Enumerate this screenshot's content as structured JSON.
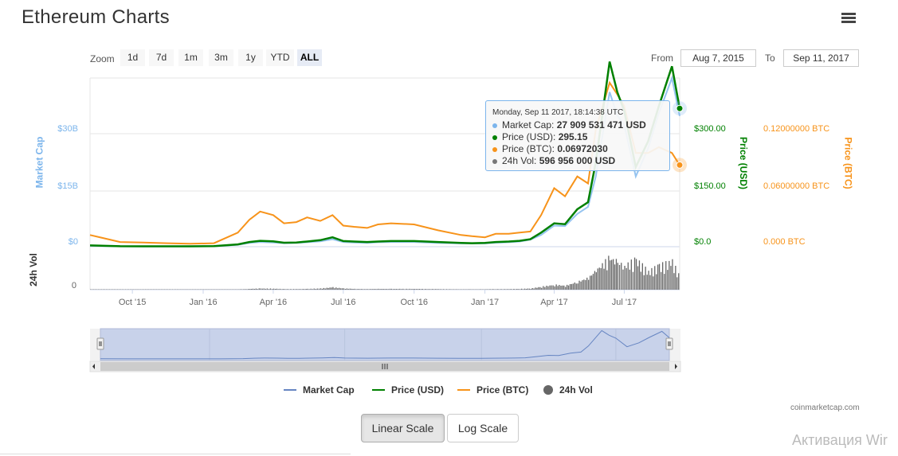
{
  "header": {
    "title": "Ethereum Charts"
  },
  "zoom": {
    "label": "Zoom",
    "buttons": [
      "1d",
      "7d",
      "1m",
      "3m",
      "1y",
      "YTD",
      "ALL"
    ],
    "selected": "ALL"
  },
  "range": {
    "from_label": "From",
    "from_value": "Aug 7, 2015",
    "to_label": "To",
    "to_value": "Sep 11, 2017"
  },
  "axes": {
    "market_cap_title": "Market Cap",
    "market_cap_ticks": [
      "$30B",
      "$15B",
      "$0"
    ],
    "usd_title": "Price (USD)",
    "usd_ticks": [
      "$300.00",
      "$150.00",
      "$0.0"
    ],
    "btc_title": "Price (BTC)",
    "btc_ticks": [
      "0.12000000 BTC",
      "0.06000000 BTC",
      "0.000 BTC"
    ],
    "vol_title": "24h Vol",
    "vol_ticks": [
      "0"
    ],
    "x_ticks": [
      "Oct '15",
      "Jan '16",
      "Apr '16",
      "Jul '16",
      "Oct '16",
      "Jan '17",
      "Apr '17",
      "Jul '17"
    ],
    "navigator_ticks": [
      "Jan '16",
      "Jul '16",
      "Jan '17",
      "Jul '17"
    ]
  },
  "tooltip": {
    "header": "Monday, Sep 11 2017, 18:14:38 UTC",
    "rows": [
      {
        "label": "Market Cap:",
        "value": "27 909 531 471 USD",
        "color": "#7cb5ec"
      },
      {
        "label": "Price (USD):",
        "value": "295.15",
        "color": "#008000"
      },
      {
        "label": "Price (BTC):",
        "value": "0.06972030",
        "color": "#f7931a"
      },
      {
        "label": "24h Vol:",
        "value": "596 956 000 USD",
        "color": "#777777"
      }
    ]
  },
  "legend": [
    "Market Cap",
    "Price (USD)",
    "Price (BTC)",
    "24h Vol"
  ],
  "credits": "coinmarketcap.com",
  "scale_buttons": {
    "linear": "Linear Scale",
    "log": "Log Scale"
  },
  "watermark": "Активация Wir",
  "colors": {
    "market_cap": "#7cb5ec",
    "usd": "#008000",
    "btc": "#f7931a",
    "vol": "#666666",
    "navigator": "#6685c2"
  },
  "chart_data": {
    "type": "line",
    "x": [
      "2015-08-07",
      "2015-09-15",
      "2015-10-15",
      "2015-11-15",
      "2015-12-15",
      "2016-01-15",
      "2016-02-15",
      "2016-03-01",
      "2016-03-15",
      "2016-04-01",
      "2016-04-15",
      "2016-05-01",
      "2016-05-15",
      "2016-06-01",
      "2016-06-17",
      "2016-07-01",
      "2016-07-15",
      "2016-08-01",
      "2016-08-15",
      "2016-09-01",
      "2016-10-01",
      "2016-11-01",
      "2016-12-01",
      "2016-12-15",
      "2017-01-01",
      "2017-01-15",
      "2017-02-01",
      "2017-02-15",
      "2017-03-01",
      "2017-03-15",
      "2017-04-01",
      "2017-04-15",
      "2017-05-01",
      "2017-05-15",
      "2017-05-25",
      "2017-06-12",
      "2017-06-22",
      "2017-07-01",
      "2017-07-16",
      "2017-08-01",
      "2017-08-15",
      "2017-09-01",
      "2017-09-11"
    ],
    "series": [
      {
        "name": "Market Cap",
        "unit": "USD",
        "values": [
          200000000.0,
          80000000.0,
          70000000.0,
          70000000.0,
          70000000.0,
          100000000.0,
          400000000.0,
          800000000.0,
          1000000000.0,
          900000000.0,
          750000000.0,
          800000000.0,
          950000000.0,
          1150000000.0,
          1600000000.0,
          1000000000.0,
          900000000.0,
          800000000.0,
          950000000.0,
          1000000000.0,
          1000000000.0,
          800000000.0,
          700000000.0,
          700000000.0,
          700000000.0,
          850000000.0,
          950000000.0,
          1100000000.0,
          1500000000.0,
          2500000000.0,
          4500000000.0,
          4400000000.0,
          7000000000.0,
          8500000000.0,
          15000000000.0,
          33000000000.0,
          28000000000.0,
          26000000000.0,
          15000000000.0,
          21000000000.0,
          28500000000.0,
          36000000000.0,
          27900000000.0
        ]
      },
      {
        "name": "Price (USD)",
        "unit": "USD",
        "values": [
          2.8,
          1.0,
          0.9,
          0.9,
          0.9,
          1.2,
          5.0,
          10.0,
          12.5,
          11.5,
          8.5,
          9.0,
          11.0,
          14.0,
          20.0,
          12.0,
          11.0,
          10.0,
          11.0,
          12.0,
          12.0,
          10.0,
          8.0,
          7.5,
          8.0,
          10.0,
          11.0,
          12.5,
          16.0,
          30.0,
          50.0,
          48.0,
          80.0,
          95.0,
          180.0,
          395.0,
          330.0,
          290.0,
          170.0,
          225.0,
          300.0,
          385.0,
          295.15
        ]
      },
      {
        "name": "Price (BTC)",
        "unit": "BTC",
        "values": [
          0.01,
          0.004,
          0.0035,
          0.003,
          0.0025,
          0.003,
          0.012,
          0.023,
          0.03,
          0.027,
          0.02,
          0.021,
          0.025,
          0.022,
          0.027,
          0.018,
          0.017,
          0.016,
          0.019,
          0.02,
          0.019,
          0.014,
          0.01,
          0.009,
          0.008,
          0.011,
          0.011,
          0.012,
          0.013,
          0.027,
          0.05,
          0.043,
          0.06,
          0.054,
          0.1,
          0.14,
          0.13,
          0.12,
          0.08,
          0.08,
          0.085,
          0.08,
          0.0697203
        ]
      },
      {
        "name": "24h Vol",
        "unit": "USD",
        "values": [
          1000000.0,
          1000000.0,
          1000000.0,
          1000000.0,
          1000000.0,
          3000000.0,
          20000000.0,
          40000000.0,
          60000000.0,
          50000000.0,
          30000000.0,
          30000000.0,
          40000000.0,
          60000000.0,
          120000000.0,
          60000000.0,
          40000000.0,
          30000000.0,
          40000000.0,
          40000000.0,
          40000000.0,
          30000000.0,
          20000000.0,
          20000000.0,
          20000000.0,
          30000000.0,
          30000000.0,
          40000000.0,
          60000000.0,
          150000000.0,
          250000000.0,
          200000000.0,
          400000000.0,
          600000000.0,
          1000000000.0,
          1600000000.0,
          1400000000.0,
          1200000000.0,
          1500000000.0,
          900000000.0,
          1200000000.0,
          1400000000.0,
          597000000.0
        ]
      }
    ],
    "ylim_market_cap": [
      0,
      36000000000
    ],
    "ylim_usd": [
      0,
      360
    ],
    "ylim_btc": [
      0,
      0.144
    ],
    "grid": true,
    "legend_position": "bottom"
  }
}
